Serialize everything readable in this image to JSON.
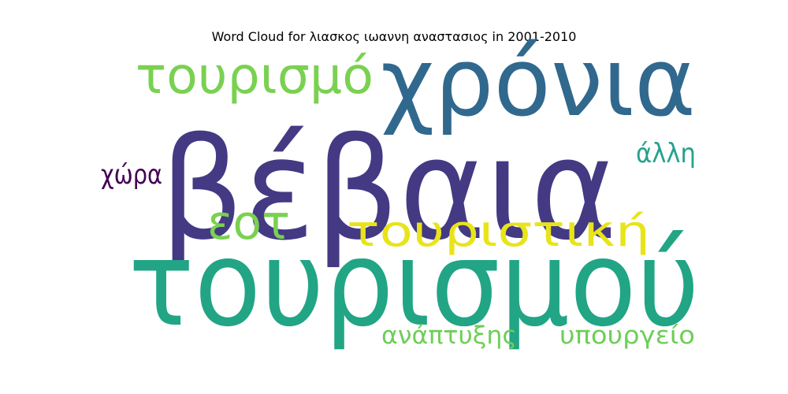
{
  "chart_data": {
    "type": "wordcloud",
    "title": "Word Cloud for λιασκος ιωαννη αναστασιος in 2001-2010",
    "words": [
      {
        "text": "βέβαια",
        "weight": 1.0,
        "color": "#443983"
      },
      {
        "text": "τουρισμού",
        "weight": 0.94,
        "color": "#21a585"
      },
      {
        "text": "χρόνια",
        "weight": 0.74,
        "color": "#31688e"
      },
      {
        "text": "τουρισμό",
        "weight": 0.46,
        "color": "#7ad151"
      },
      {
        "text": "τουριστική",
        "weight": 0.4,
        "color": "#e8e419"
      },
      {
        "text": "εοτ",
        "weight": 0.36,
        "color": "#7ad151"
      },
      {
        "text": "χώρα",
        "weight": 0.24,
        "color": "#440154"
      },
      {
        "text": "άλλη",
        "weight": 0.24,
        "color": "#25a18e"
      },
      {
        "text": "ανάπτυξης",
        "weight": 0.22,
        "color": "#6ece58"
      },
      {
        "text": "υπουργείο",
        "weight": 0.22,
        "color": "#6ece58"
      }
    ]
  }
}
